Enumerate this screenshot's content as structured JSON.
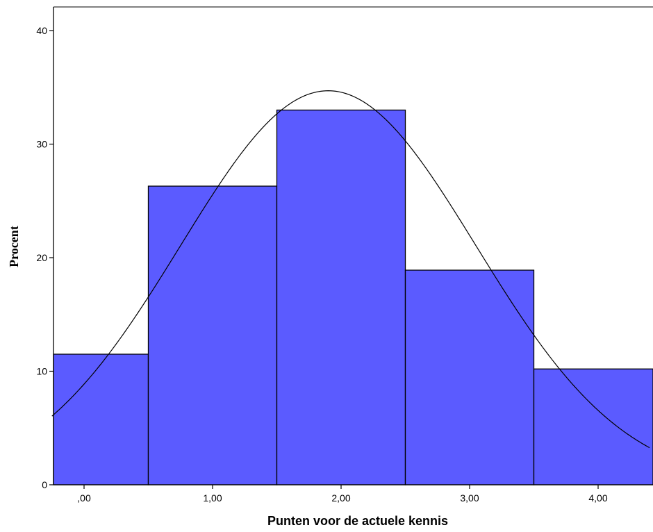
{
  "chart_data": {
    "type": "bar",
    "subtype": "histogram",
    "xlabel": "Punten voor de actuele kennis",
    "ylabel": "Procent",
    "xlim": [
      -0.25,
      4.4
    ],
    "ylim": [
      0,
      40
    ],
    "x_ticks": [
      {
        "value": 0,
        "label": ",00"
      },
      {
        "value": 1,
        "label": "1,00"
      },
      {
        "value": 2,
        "label": "2,00"
      },
      {
        "value": 3,
        "label": "3,00"
      },
      {
        "value": 4,
        "label": "4,00"
      }
    ],
    "y_ticks": [
      0,
      10,
      20,
      30,
      40
    ],
    "bins": [
      {
        "start": -0.5,
        "end": 0.5,
        "value": 11.5
      },
      {
        "start": 0.5,
        "end": 1.5,
        "value": 26.3
      },
      {
        "start": 1.5,
        "end": 2.5,
        "value": 33.0
      },
      {
        "start": 2.5,
        "end": 3.5,
        "value": 18.9
      },
      {
        "start": 3.5,
        "end": 4.5,
        "value": 10.2
      }
    ],
    "normal_curve": {
      "mean": 1.9,
      "sd": 1.15,
      "peak": 34.7
    },
    "bar_color": "#5b5bff",
    "grid": false,
    "legend": "none"
  }
}
